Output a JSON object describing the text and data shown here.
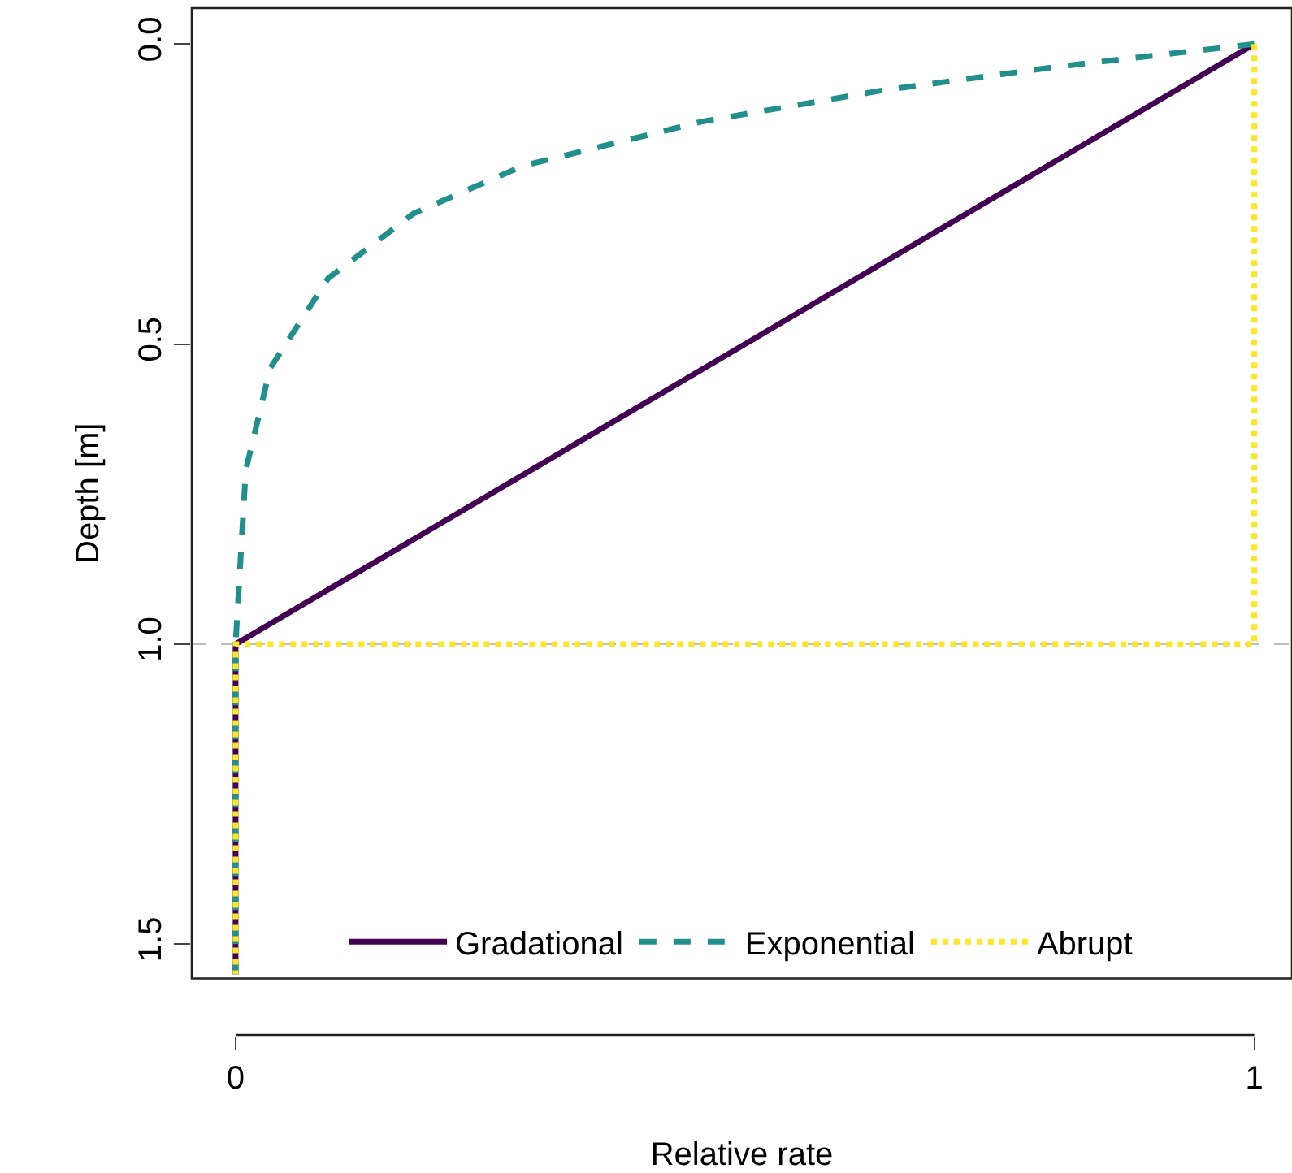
{
  "chart_data": {
    "type": "line",
    "xlabel": "Relative rate",
    "ylabel": "Depth [m]",
    "xlim": [
      -0.043,
      1.037
    ],
    "xticks": [
      0,
      1
    ],
    "ylim": [
      1.557,
      -0.06
    ],
    "yticks": [
      {
        "value": 0,
        "label": "0.0"
      },
      {
        "value": 0.5,
        "label": "0.5"
      },
      {
        "value": 1,
        "label": "1.0"
      },
      {
        "value": 1.5,
        "label": "1.5"
      }
    ],
    "series": [
      {
        "name": "Gradational",
        "color": "#440154",
        "line_style": "solid",
        "x": [
          1,
          0,
          0
        ],
        "values": [
          0,
          1,
          1.55
        ]
      },
      {
        "name": "Exponential",
        "color": "#21908c",
        "line_style": "dashed",
        "x": [
          1,
          0.81,
          0.635,
          0.458,
          0.282,
          0.175,
          0.091,
          0.034,
          0.01,
          0,
          0
        ],
        "values": [
          0,
          0.037,
          0.077,
          0.129,
          0.203,
          0.282,
          0.39,
          0.54,
          0.71,
          1,
          1.55
        ]
      },
      {
        "name": "Abrupt",
        "color": "#fde725",
        "line_style": "dotted",
        "x": [
          1,
          1,
          0,
          0
        ],
        "values": [
          0,
          1,
          1,
          1.55
        ]
      }
    ],
    "ref_lines": [
      {
        "axis": "y",
        "value": 1,
        "color": "#bebebe",
        "line_style": "dashed"
      }
    ],
    "legend": "bottom",
    "grid": false
  }
}
